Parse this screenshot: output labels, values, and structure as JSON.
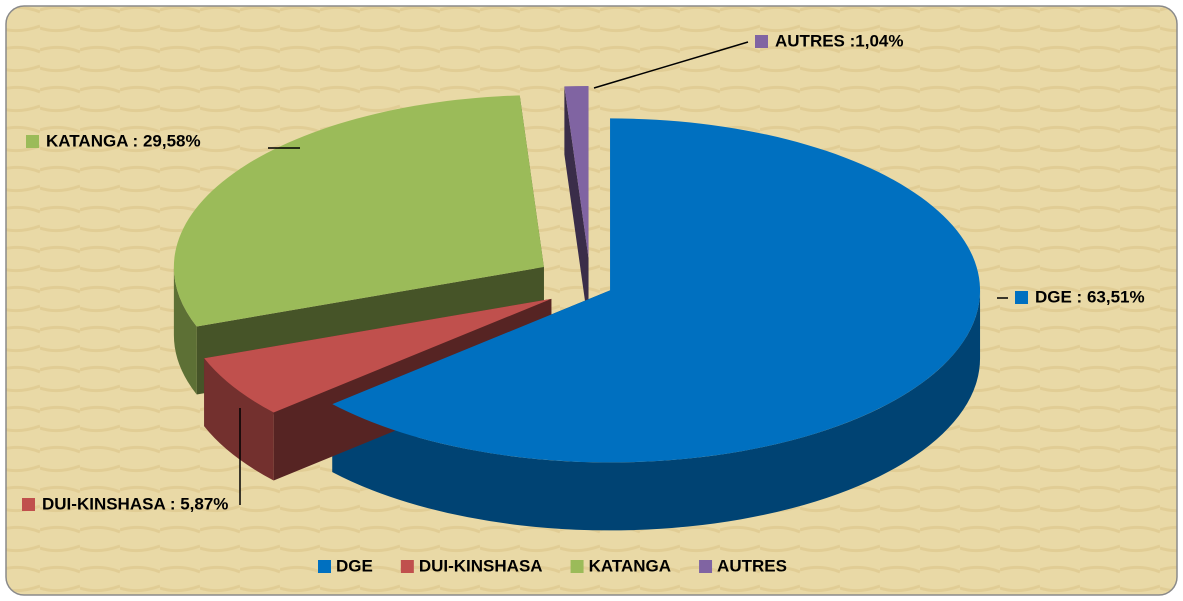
{
  "chart_data": {
    "type": "pie3d",
    "categories": [
      "DGE",
      "DUI-KINSHASA",
      "KATANGA",
      "AUTRES"
    ],
    "values": [
      63.51,
      5.87,
      29.58,
      1.04
    ],
    "value_labels": [
      "DGE : 63,51%",
      "DUI-KINSHASA : 5,87%",
      "KATANGA : 29,58%",
      "AUTRES :1,04%"
    ],
    "colors": [
      "#0070c0",
      "#c0504d",
      "#9bbb59",
      "#8064a2"
    ],
    "legend": "bottom"
  }
}
